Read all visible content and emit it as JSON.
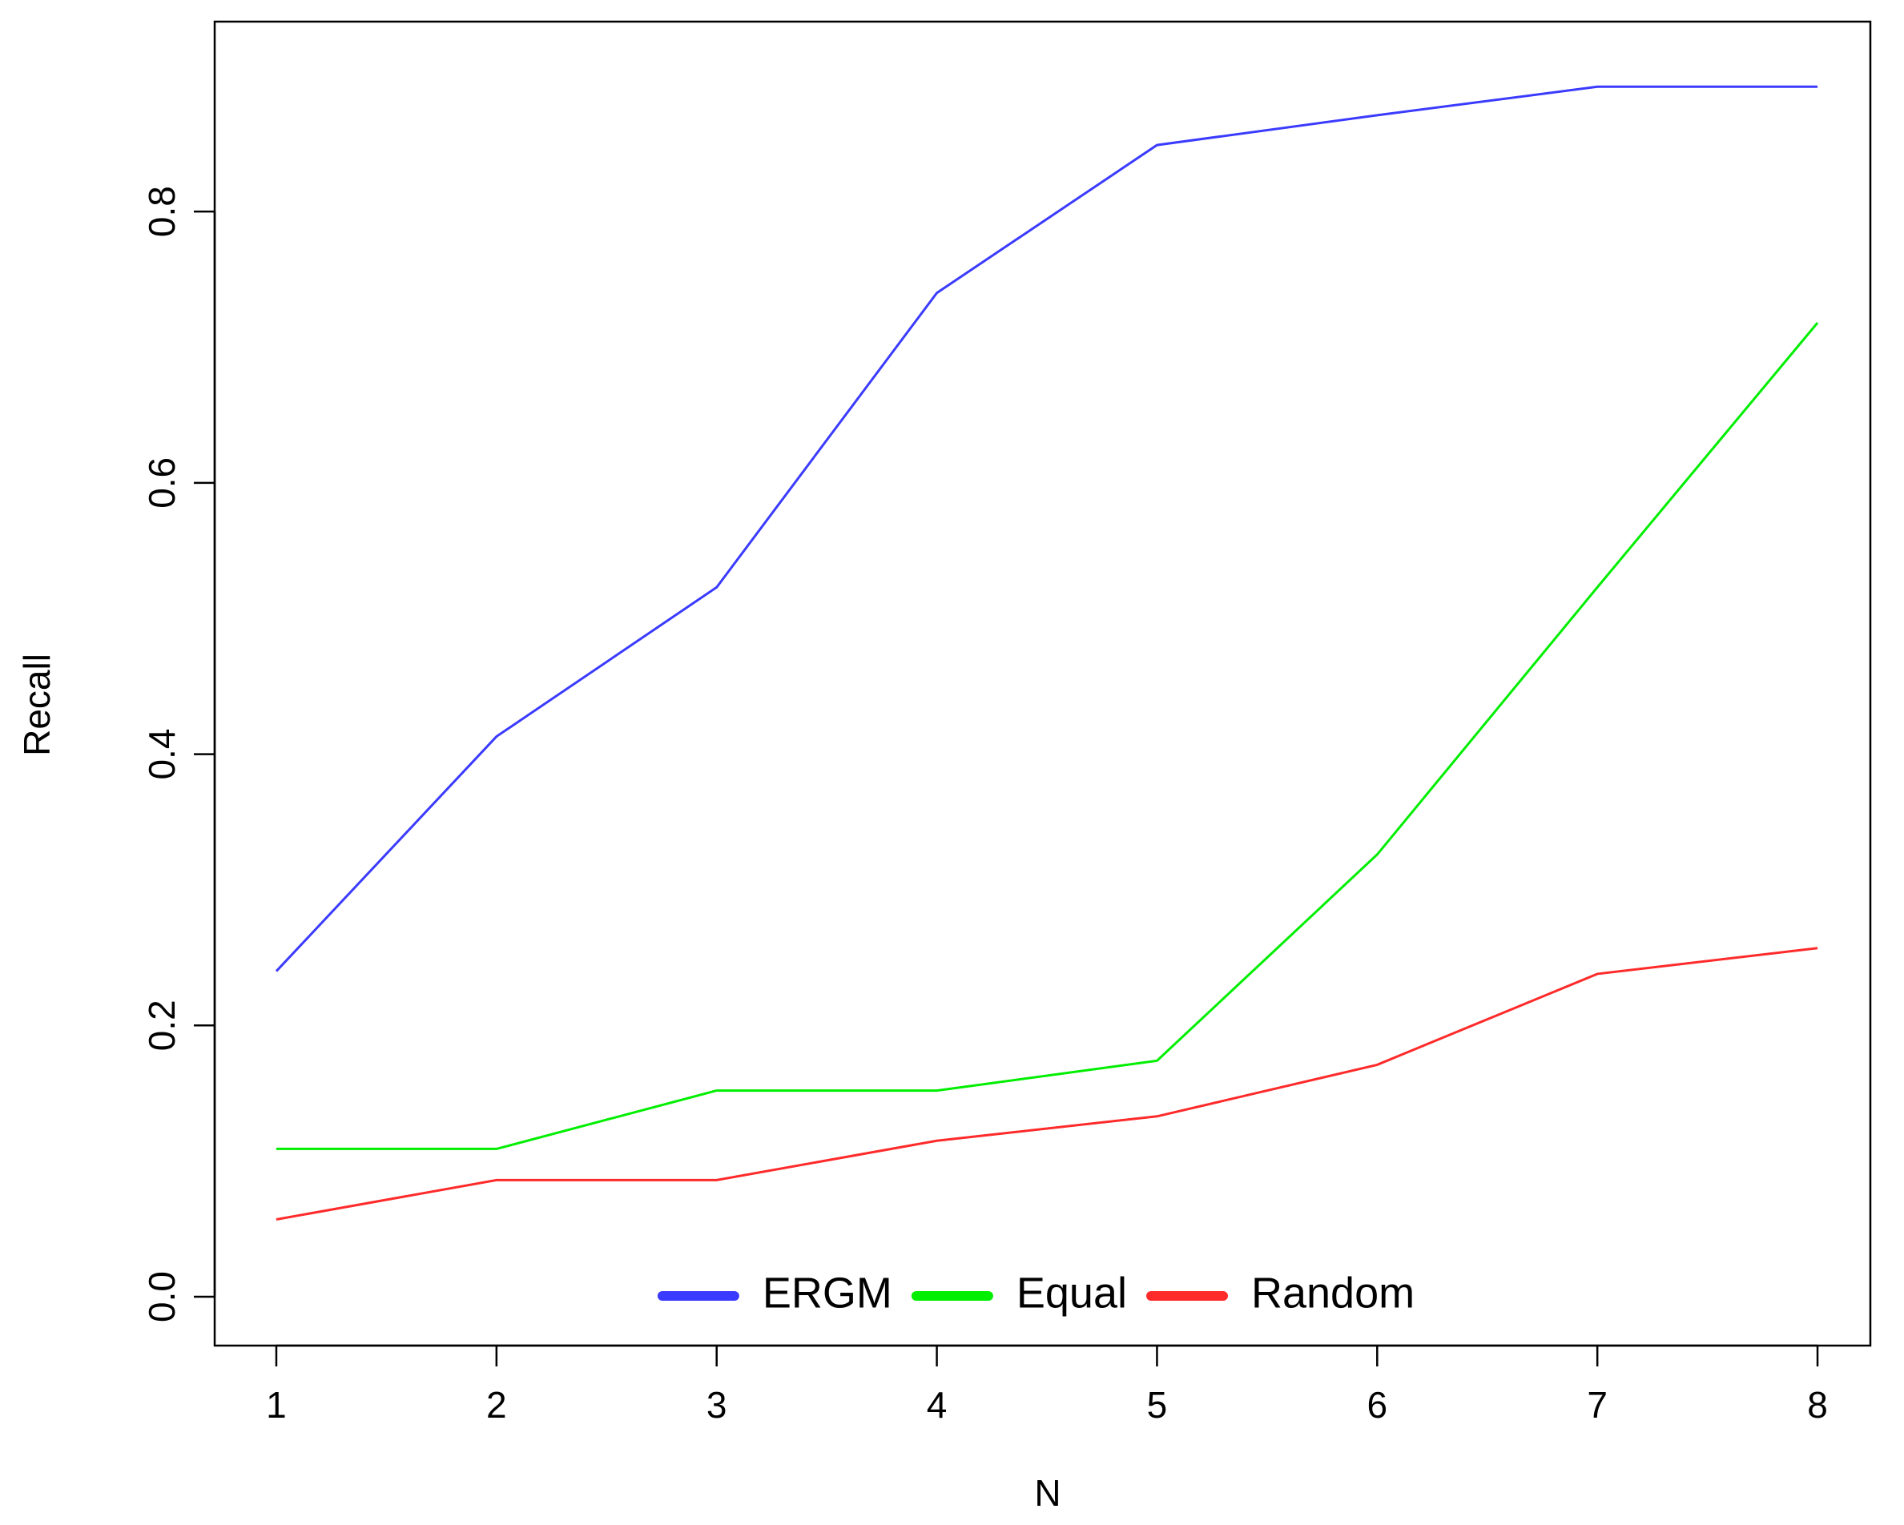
{
  "chart_data": {
    "type": "line",
    "x_label": "N",
    "y_label": "Recall",
    "x": [
      1,
      2,
      3,
      4,
      5,
      6,
      7,
      8
    ],
    "series": [
      {
        "name": "ERGM",
        "color": "#3b3bff",
        "values": [
          0.24,
          0.413,
          0.523,
          0.74,
          0.849,
          0.871,
          0.892,
          0.892
        ]
      },
      {
        "name": "Equal",
        "color": "#00ee00",
        "values": [
          0.109,
          0.109,
          0.152,
          0.152,
          0.174,
          0.326,
          0.523,
          0.718
        ]
      },
      {
        "name": "Random",
        "color": "#ff2a2a",
        "values": [
          0.057,
          0.086,
          0.086,
          0.115,
          0.133,
          0.171,
          0.238,
          0.257
        ]
      }
    ],
    "xlim": [
      0.72,
      8.24
    ],
    "ylim": [
      -0.036,
      0.94
    ],
    "xticks": [
      1,
      2,
      3,
      4,
      5,
      6,
      7,
      8
    ],
    "yticks": [
      {
        "value": 0,
        "label": "0.0"
      },
      0.2,
      0.4,
      0.6,
      0.8
    ],
    "legend": "bottom",
    "grid": false
  }
}
